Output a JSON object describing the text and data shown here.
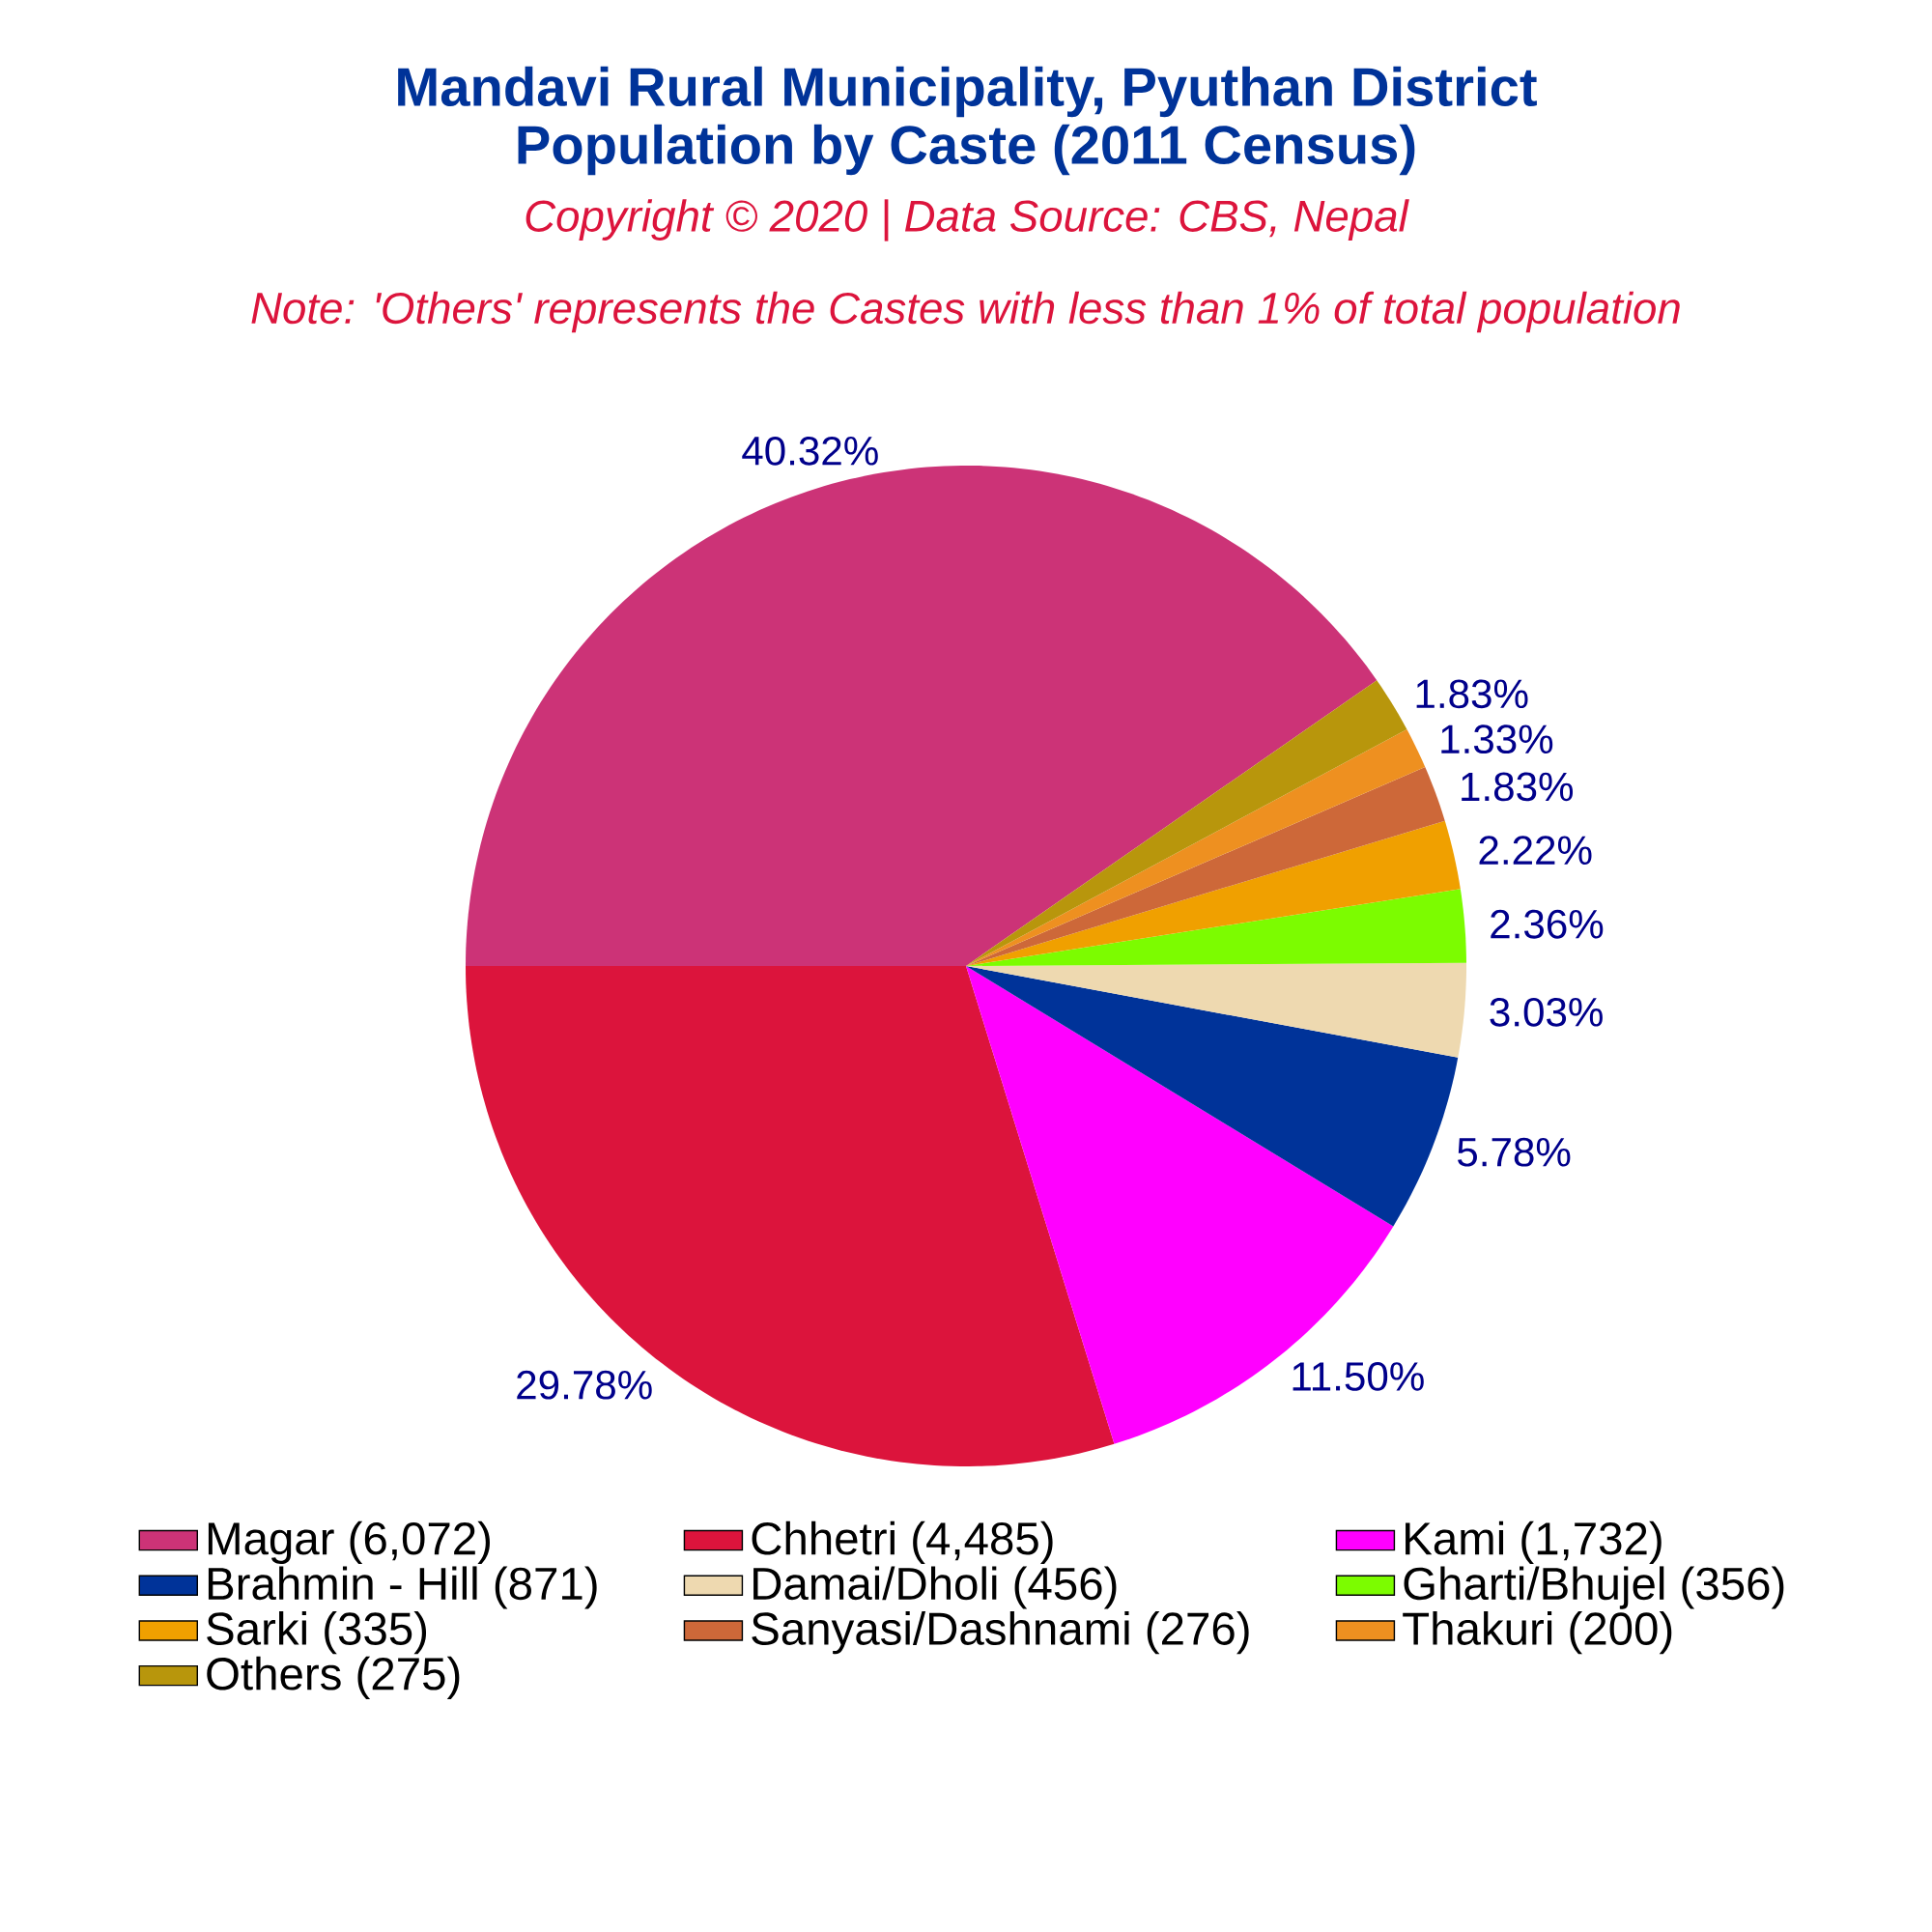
{
  "chart_data": {
    "type": "pie",
    "title": "Mandavi Rural Municipality, Pyuthan District",
    "subtitle": "Population by Caste (2011 Census)",
    "annotations": [
      "Copyright © 2020 | Data Source: CBS, Nepal",
      "Note: 'Others' represents the Castes with less than 1% of total population"
    ],
    "categories": [
      "Magar (6,072)",
      "Chhetri (4,485)",
      "Kami (1,732)",
      "Brahmin - Hill (871)",
      "Damai/Dholi (456)",
      "Gharti/Bhujel (356)",
      "Sarki (335)",
      "Sanyasi/Dashnami (276)",
      "Thakuri (200)",
      "Others (275)"
    ],
    "values": [
      40.32,
      29.78,
      11.5,
      5.78,
      3.03,
      2.36,
      2.22,
      1.83,
      1.33,
      1.83
    ],
    "colors": [
      "#cc3377",
      "#dc143c",
      "#ff00ff",
      "#003399",
      "#eed9b0",
      "#7cfc00",
      "#f0a000",
      "#cd6839",
      "#ee9020",
      "#b8960c"
    ],
    "value_labels": [
      "40.32%",
      "29.78%",
      "11.50%",
      "5.78%",
      "3.03%",
      "2.36%",
      "2.22%",
      "1.83%",
      "1.33%",
      "1.83%"
    ],
    "legend": "bottom"
  }
}
